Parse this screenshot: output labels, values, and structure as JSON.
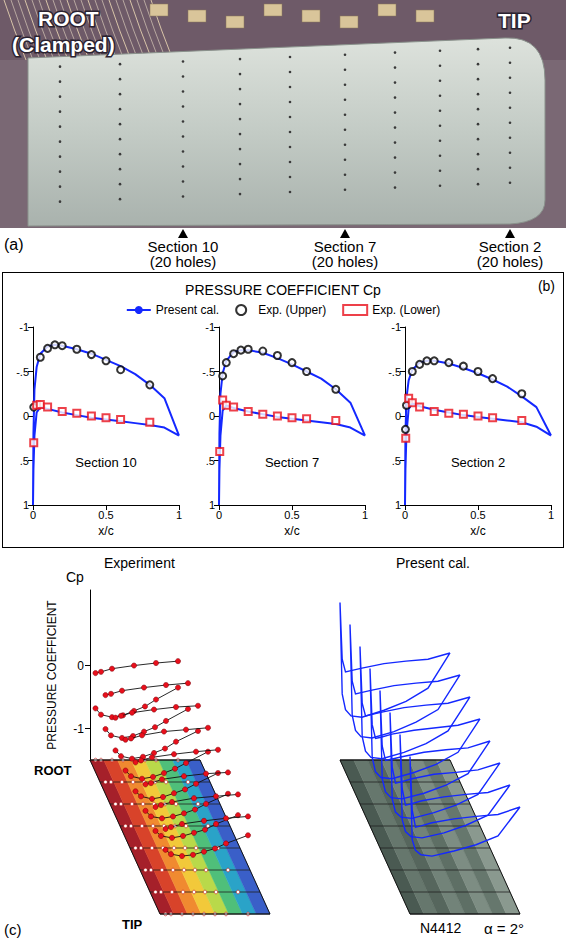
{
  "photo": {
    "letter": "(a)",
    "root": "ROOT",
    "root_note": "(Clamped)",
    "tip": "TIP",
    "sections": [
      {
        "label": "Section 10",
        "note": "(20 holes)"
      },
      {
        "label": "Section 7",
        "note": "(20 holes)"
      },
      {
        "label": "Section 2",
        "note": "(20 holes)"
      }
    ]
  },
  "chart_data": [
    {
      "type": "line",
      "letter": "(b)",
      "title": "PRESSURE COEFFICIENT Cp",
      "xlabel": "x/c",
      "xlim": [
        0,
        1
      ],
      "xticks": [
        0,
        0.5,
        1
      ],
      "ylim": [
        1,
        -1
      ],
      "yticks": [
        {
          "value": -1,
          "label": "-1"
        },
        {
          "value": -0.5,
          "label": "-.5"
        },
        0,
        {
          "value": 0.5,
          "label": ".5"
        },
        1
      ],
      "grid": false,
      "legend": "top",
      "panels": [
        {
          "title": "Section 10",
          "series": [
            {
              "name": "Present cal.",
              "type": "line",
              "color": "#1428ff",
              "line_style": "solid",
              "x": [
                1,
                0.9,
                0.8,
                0.7,
                0.6,
                0.5,
                0.4,
                0.3,
                0.2,
                0.15,
                0.1,
                0.05,
                0.025,
                0.01,
                0.003,
                0,
                0.003,
                0.01,
                0.025,
                0.05,
                0.1,
                0.2,
                0.3,
                0.4,
                0.5,
                0.6,
                0.7,
                0.8,
                0.9,
                1
              ],
              "values": [
                0.22,
                -0.2,
                -0.35,
                -0.47,
                -0.56,
                -0.63,
                -0.7,
                -0.75,
                -0.79,
                -0.8,
                -0.78,
                -0.7,
                -0.55,
                -0.3,
                0.2,
                1,
                0.6,
                0.22,
                -0.04,
                -0.1,
                -0.08,
                -0.04,
                -0.01,
                0.02,
                0.04,
                0.06,
                0.08,
                0.1,
                0.13,
                0.22
              ]
            },
            {
              "name": "Exp. (Upper)",
              "type": "scatter",
              "color": "#000000",
              "marker": "circle_open",
              "x": [
                0.005,
                0.05,
                0.1,
                0.15,
                0.2,
                0.3,
                0.4,
                0.5,
                0.6,
                0.8
              ],
              "values": [
                -0.1,
                -0.66,
                -0.76,
                -0.8,
                -0.79,
                -0.75,
                -0.69,
                -0.62,
                -0.52,
                -0.35
              ]
            },
            {
              "name": "Exp. (Lower)",
              "type": "scatter",
              "color": "#e8101c",
              "marker": "square_open",
              "x": [
                0.005,
                0.025,
                0.05,
                0.1,
                0.2,
                0.3,
                0.4,
                0.5,
                0.6,
                0.8
              ],
              "values": [
                0.3,
                -0.12,
                -0.13,
                -0.1,
                -0.05,
                -0.03,
                0,
                0.02,
                0.04,
                0.07
              ]
            }
          ]
        },
        {
          "title": "Section 7",
          "series": [
            {
              "name": "Present cal.",
              "type": "line",
              "color": "#1428ff",
              "line_style": "solid",
              "x": [
                1,
                0.9,
                0.8,
                0.7,
                0.6,
                0.5,
                0.4,
                0.3,
                0.2,
                0.15,
                0.1,
                0.05,
                0.025,
                0.01,
                0.003,
                0,
                0.003,
                0.01,
                0.025,
                0.05,
                0.1,
                0.2,
                0.3,
                0.4,
                0.5,
                0.6,
                0.7,
                0.8,
                0.9,
                1
              ],
              "values": [
                0.22,
                -0.15,
                -0.3,
                -0.42,
                -0.5,
                -0.58,
                -0.65,
                -0.71,
                -0.74,
                -0.74,
                -0.72,
                -0.62,
                -0.48,
                -0.25,
                0.2,
                1,
                0.6,
                0.22,
                -0.06,
                -0.12,
                -0.09,
                -0.05,
                -0.02,
                0.01,
                0.03,
                0.05,
                0.07,
                0.09,
                0.13,
                0.22
              ]
            },
            {
              "name": "Exp. (Upper)",
              "type": "scatter",
              "color": "#000000",
              "marker": "circle_open",
              "x": [
                0.025,
                0.05,
                0.1,
                0.15,
                0.2,
                0.3,
                0.4,
                0.5,
                0.6,
                0.8
              ],
              "values": [
                -0.45,
                -0.6,
                -0.7,
                -0.74,
                -0.75,
                -0.73,
                -0.68,
                -0.6,
                -0.5,
                -0.3
              ]
            },
            {
              "name": "Exp. (Lower)",
              "type": "scatter",
              "color": "#e8101c",
              "marker": "square_open",
              "x": [
                0.005,
                0.025,
                0.05,
                0.1,
                0.2,
                0.3,
                0.4,
                0.5,
                0.6,
                0.8
              ],
              "values": [
                0.4,
                -0.18,
                -0.12,
                -0.1,
                -0.05,
                -0.02,
                0,
                0.02,
                0.03,
                0.05
              ]
            }
          ]
        },
        {
          "title": "Section 2",
          "series": [
            {
              "name": "Present cal.",
              "type": "line",
              "color": "#1428ff",
              "line_style": "solid",
              "x": [
                1,
                0.9,
                0.8,
                0.7,
                0.6,
                0.5,
                0.4,
                0.3,
                0.2,
                0.15,
                0.1,
                0.05,
                0.025,
                0.01,
                0.003,
                0,
                0.003,
                0.01,
                0.025,
                0.05,
                0.1,
                0.2,
                0.3,
                0.4,
                0.5,
                0.6,
                0.7,
                0.8,
                0.9,
                1
              ],
              "values": [
                0.22,
                -0.1,
                -0.22,
                -0.33,
                -0.41,
                -0.48,
                -0.54,
                -0.59,
                -0.62,
                -0.62,
                -0.6,
                -0.52,
                -0.4,
                -0.2,
                0.2,
                1,
                0.6,
                0.2,
                -0.08,
                -0.14,
                -0.11,
                -0.07,
                -0.04,
                -0.01,
                0.01,
                0.03,
                0.05,
                0.07,
                0.12,
                0.22
              ]
            },
            {
              "name": "Exp. (Upper)",
              "type": "scatter",
              "color": "#000000",
              "marker": "circle_open",
              "x": [
                0.003,
                0.01,
                0.05,
                0.1,
                0.15,
                0.2,
                0.3,
                0.4,
                0.5,
                0.6,
                0.8
              ],
              "values": [
                0.15,
                -0.12,
                -0.5,
                -0.58,
                -0.62,
                -0.62,
                -0.6,
                -0.56,
                -0.5,
                -0.42,
                -0.25
              ]
            },
            {
              "name": "Exp. (Lower)",
              "type": "scatter",
              "color": "#e8101c",
              "marker": "square_open",
              "x": [
                0.005,
                0.025,
                0.05,
                0.1,
                0.2,
                0.3,
                0.4,
                0.5,
                0.6,
                0.8
              ],
              "values": [
                0.25,
                -0.2,
                -0.15,
                -0.1,
                -0.05,
                -0.03,
                -0.02,
                0,
                0.02,
                0.05
              ]
            }
          ]
        }
      ]
    },
    {
      "type": "line",
      "letter": "(c)",
      "ylabel": "PRESSURE COEFFICIENT",
      "ysymbol": "Cp",
      "xlim": [
        0,
        1
      ],
      "ylim": [
        -1.5,
        1.2
      ],
      "yticks": [
        -1,
        0
      ],
      "grid": false,
      "tick_labels": "y",
      "root_label": "ROOT",
      "tip_label": "TIP",
      "airfoil": "N4412",
      "angle": "α = 2°",
      "series": [
        {
          "name": "Experiment",
          "color": "#e8101c",
          "marker": "circle",
          "x_upper": [
            0.05,
            0.1,
            0.2,
            0.3,
            0.4,
            0.5,
            0.6,
            0.8
          ],
          "x_lower": [
            0.05,
            0.1,
            0.2,
            0.4,
            0.6,
            0.8
          ],
          "profiles": [
            {
              "upper": [
                -0.68,
                -0.78,
                -0.82,
                -0.79,
                -0.72,
                -0.65,
                -0.54,
                -0.35
              ],
              "lower": [
                -0.12,
                -0.1,
                -0.05,
                0,
                0.04,
                0.07
              ]
            },
            {
              "upper": [
                -0.66,
                -0.76,
                -0.8,
                -0.77,
                -0.7,
                -0.63,
                -0.53,
                -0.34
              ],
              "lower": [
                -0.12,
                -0.1,
                -0.05,
                0,
                0.04,
                0.07
              ]
            },
            {
              "upper": [
                -0.65,
                -0.74,
                -0.78,
                -0.75,
                -0.69,
                -0.62,
                -0.51,
                -0.34
              ],
              "lower": [
                -0.13,
                -0.1,
                -0.05,
                0,
                0.04,
                0.06
              ]
            },
            {
              "upper": [
                -0.62,
                -0.71,
                -0.75,
                -0.72,
                -0.66,
                -0.59,
                -0.5,
                -0.32
              ],
              "lower": [
                -0.13,
                -0.11,
                -0.06,
                0,
                0.03,
                0.06
              ]
            },
            {
              "upper": [
                -0.6,
                -0.68,
                -0.72,
                -0.69,
                -0.63,
                -0.57,
                -0.48,
                -0.31
              ],
              "lower": [
                -0.14,
                -0.11,
                -0.06,
                -0.01,
                0.03,
                0.06
              ]
            },
            {
              "upper": [
                -0.56,
                -0.65,
                -0.68,
                -0.65,
                -0.6,
                -0.54,
                -0.45,
                -0.29
              ],
              "lower": [
                -0.14,
                -0.12,
                -0.06,
                -0.01,
                0.03,
                0.05
              ]
            },
            {
              "upper": [
                -0.53,
                -0.61,
                -0.64,
                -0.61,
                -0.56,
                -0.51,
                -0.42,
                -0.28
              ],
              "lower": [
                -0.15,
                -0.12,
                -0.07,
                -0.01,
                0.02,
                0.05
              ]
            },
            {
              "upper": [
                -0.48,
                -0.55,
                -0.58,
                -0.56,
                -0.51,
                -0.46,
                -0.38,
                -0.25
              ],
              "lower": [
                -0.15,
                -0.12,
                -0.07,
                -0.02,
                0.02,
                0.05
              ]
            }
          ]
        },
        {
          "name": "Present cal.",
          "color": "#1428ff",
          "line_style": "solid",
          "x": [
            1,
            0.8,
            0.6,
            0.4,
            0.2,
            0.1,
            0.05,
            0.02,
            0,
            0.02,
            0.05,
            0.1,
            0.2,
            0.4,
            0.6,
            0.8,
            1
          ],
          "profiles": [
            [
              0.2,
              -0.36,
              -0.57,
              -0.71,
              -0.82,
              -0.8,
              -0.7,
              -0.45,
              1,
              0.1,
              -0.1,
              -0.08,
              -0.04,
              0.03,
              0.07,
              0.1,
              0.2
            ],
            [
              0.2,
              -0.35,
              -0.55,
              -0.7,
              -0.8,
              -0.78,
              -0.68,
              -0.44,
              1,
              0.1,
              -0.1,
              -0.08,
              -0.04,
              0.03,
              0.07,
              0.1,
              0.2
            ],
            [
              0.2,
              -0.34,
              -0.54,
              -0.68,
              -0.78,
              -0.76,
              -0.66,
              -0.43,
              1,
              0.1,
              -0.1,
              -0.08,
              -0.04,
              0.03,
              0.07,
              0.1,
              0.2
            ],
            [
              0.2,
              -0.33,
              -0.52,
              -0.65,
              -0.75,
              -0.73,
              -0.64,
              -0.41,
              1,
              0.11,
              -0.11,
              -0.09,
              -0.04,
              0.02,
              0.06,
              0.1,
              0.2
            ],
            [
              0.2,
              -0.32,
              -0.5,
              -0.63,
              -0.72,
              -0.7,
              -0.61,
              -0.4,
              1,
              0.12,
              -0.11,
              -0.09,
              -0.05,
              0.02,
              0.06,
              0.09,
              0.2
            ],
            [
              0.2,
              -0.3,
              -0.47,
              -0.59,
              -0.68,
              -0.66,
              -0.58,
              -0.37,
              1,
              0.13,
              -0.12,
              -0.1,
              -0.05,
              0.02,
              0.05,
              0.09,
              0.2
            ],
            [
              0.2,
              -0.28,
              -0.44,
              -0.56,
              -0.64,
              -0.62,
              -0.54,
              -0.35,
              1,
              0.14,
              -0.12,
              -0.1,
              -0.05,
              0.01,
              0.05,
              0.08,
              0.2
            ],
            [
              0.2,
              -0.26,
              -0.4,
              -0.5,
              -0.58,
              -0.56,
              -0.49,
              -0.32,
              1,
              0.15,
              -0.12,
              -0.1,
              -0.05,
              0.01,
              0.05,
              0.08,
              0.2
            ]
          ]
        }
      ]
    }
  ]
}
